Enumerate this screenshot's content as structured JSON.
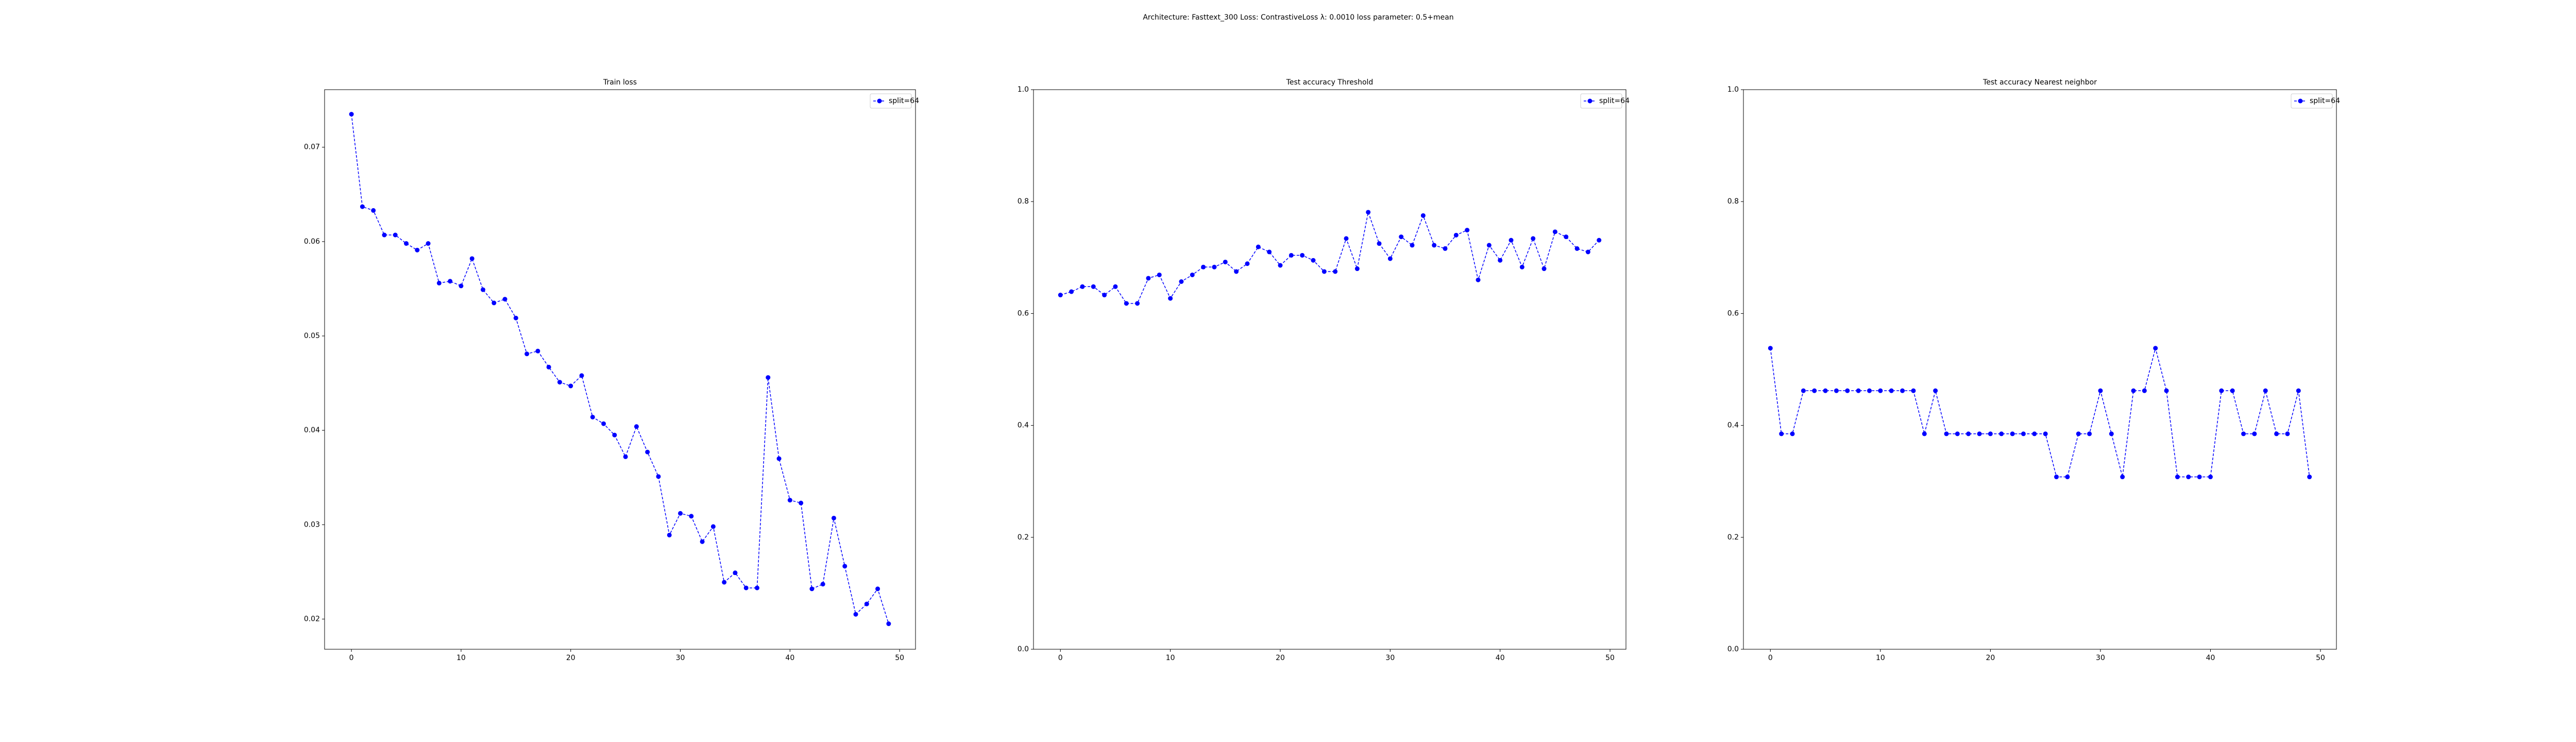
{
  "title": "Architecture: Fasttext_300 Loss: ContrastiveLoss λ: 0.0010 loss parameter: 0.5+mean",
  "chart_data": [
    {
      "type": "line",
      "title": "Train loss",
      "x": [
        0,
        1,
        2,
        3,
        4,
        5,
        6,
        7,
        8,
        9,
        10,
        11,
        12,
        13,
        14,
        15,
        16,
        17,
        18,
        19,
        20,
        21,
        22,
        23,
        24,
        25,
        26,
        27,
        28,
        29,
        30,
        31,
        32,
        33,
        34,
        35,
        36,
        37,
        38,
        39,
        40,
        41,
        42,
        43,
        44,
        45,
        46,
        47,
        48,
        49
      ],
      "series": [
        {
          "name": "split=64",
          "color": "#0000ff",
          "values": [
            0.0735,
            0.0637,
            0.0633,
            0.0607,
            0.0607,
            0.0598,
            0.0591,
            0.0598,
            0.0556,
            0.0558,
            0.0553,
            0.0582,
            0.0549,
            0.0535,
            0.0539,
            0.0519,
            0.0481,
            0.0484,
            0.0467,
            0.0451,
            0.0447,
            0.0458,
            0.0414,
            0.0407,
            0.0395,
            0.0372,
            0.0404,
            0.0377,
            0.0351,
            0.0289,
            0.0312,
            0.0309,
            0.0282,
            0.0298,
            0.0239,
            0.0249,
            0.0233,
            0.0233,
            0.0456,
            0.037,
            0.0326,
            0.0323,
            0.0232,
            0.0237,
            0.0307,
            0.0256,
            0.0205,
            0.0216,
            0.0232,
            0.0195
          ]
        }
      ],
      "xlim": [
        -2.45,
        51.45
      ],
      "xticks": [
        0,
        10,
        20,
        30,
        40,
        50
      ],
      "ylim": [
        0.0168,
        0.0761
      ],
      "yticks": [
        0.02,
        0.03,
        0.04,
        0.05,
        0.06,
        0.07
      ],
      "legend": "upper right"
    },
    {
      "type": "line",
      "title": "Test accuracy Threshold",
      "x": [
        0,
        1,
        2,
        3,
        4,
        5,
        6,
        7,
        8,
        9,
        10,
        11,
        12,
        13,
        14,
        15,
        16,
        17,
        18,
        19,
        20,
        21,
        22,
        23,
        24,
        25,
        26,
        27,
        28,
        29,
        30,
        31,
        32,
        33,
        34,
        35,
        36,
        37,
        38,
        39,
        40,
        41,
        42,
        43,
        44,
        45,
        46,
        47,
        48,
        49
      ],
      "series": [
        {
          "name": "split=64",
          "color": "#0000ff",
          "values": [
            0.633,
            0.639,
            0.648,
            0.648,
            0.633,
            0.648,
            0.618,
            0.618,
            0.663,
            0.669,
            0.627,
            0.657,
            0.669,
            0.683,
            0.683,
            0.692,
            0.675,
            0.689,
            0.719,
            0.71,
            0.686,
            0.704,
            0.704,
            0.695,
            0.675,
            0.675,
            0.734,
            0.68,
            0.781,
            0.725,
            0.698,
            0.737,
            0.722,
            0.775,
            0.722,
            0.716,
            0.74,
            0.749,
            0.66,
            0.722,
            0.695,
            0.731,
            0.683,
            0.734,
            0.68,
            0.746,
            0.737,
            0.716,
            0.71,
            0.731
          ]
        }
      ],
      "xlim": [
        -2.45,
        51.45
      ],
      "xticks": [
        0,
        10,
        20,
        30,
        40,
        50
      ],
      "ylim": [
        0,
        1
      ],
      "yticks": [
        {
          "value": 0,
          "label": "0.0"
        },
        0.2,
        0.4,
        0.6,
        0.8,
        {
          "value": 1,
          "label": "1.0"
        }
      ],
      "legend": "upper right"
    },
    {
      "type": "line",
      "title": "Test accuracy Nearest neighbor",
      "x": [
        0,
        1,
        2,
        3,
        4,
        5,
        6,
        7,
        8,
        9,
        10,
        11,
        12,
        13,
        14,
        15,
        16,
        17,
        18,
        19,
        20,
        21,
        22,
        23,
        24,
        25,
        26,
        27,
        28,
        29,
        30,
        31,
        32,
        33,
        34,
        35,
        36,
        37,
        38,
        39,
        40,
        41,
        42,
        43,
        44,
        45,
        46,
        47,
        48,
        49
      ],
      "series": [
        {
          "name": "split=64",
          "color": "#0000ff",
          "values": [
            0.538,
            0.385,
            0.385,
            0.462,
            0.462,
            0.462,
            0.462,
            0.462,
            0.462,
            0.462,
            0.462,
            0.462,
            0.462,
            0.462,
            0.385,
            0.462,
            0.385,
            0.385,
            0.385,
            0.385,
            0.385,
            0.385,
            0.385,
            0.385,
            0.385,
            0.385,
            0.308,
            0.308,
            0.385,
            0.385,
            0.462,
            0.385,
            0.308,
            0.462,
            0.462,
            0.538,
            0.462,
            0.308,
            0.308,
            0.308,
            0.308,
            0.462,
            0.462,
            0.385,
            0.385,
            0.462,
            0.385,
            0.385,
            0.462,
            0.308
          ]
        }
      ],
      "xlim": [
        -2.45,
        51.45
      ],
      "xticks": [
        0,
        10,
        20,
        30,
        40,
        50
      ],
      "ylim": [
        0,
        1
      ],
      "yticks": [
        {
          "value": 0,
          "label": "0.0"
        },
        0.2,
        0.4,
        0.6,
        0.8,
        {
          "value": 1,
          "label": "1.0"
        }
      ],
      "legend": "upper right"
    }
  ]
}
